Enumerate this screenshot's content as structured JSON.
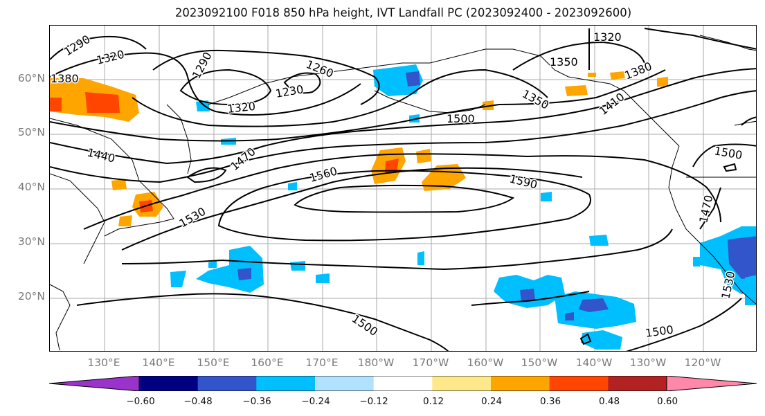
{
  "title": "2023092100 F018 850 hPa height, IVT Landfall PC (2023092400 - 2023092600)",
  "map": {
    "lat_labels": [
      "60°N",
      "50°N",
      "40°N",
      "30°N",
      "20°N"
    ],
    "lon_labels": [
      "130°E",
      "140°E",
      "150°E",
      "160°E",
      "170°E",
      "180°W",
      "170°W",
      "160°W",
      "150°W",
      "140°W",
      "130°W",
      "120°W"
    ],
    "contour_labels": [
      "1290",
      "1320",
      "1380",
      "1290",
      "1260",
      "1230",
      "1320",
      "1350",
      "1320",
      "1350",
      "1380",
      "1410",
      "1500",
      "1440",
      "1470",
      "1560",
      "1590",
      "1500",
      "1470",
      "1530",
      "1530",
      "1500",
      "1500"
    ]
  },
  "colorbar": {
    "colors": [
      "#9933cc",
      "#000080",
      "#3355cc",
      "#00bfff",
      "#b0e2ff",
      "#ffffff",
      "#ffe88a",
      "#ffa500",
      "#ff4500",
      "#b22222",
      "#ff88aa"
    ],
    "tick_labels": [
      "−0.60",
      "−0.48",
      "−0.36",
      "−0.24",
      "−0.12",
      "0.12",
      "0.24",
      "0.36",
      "0.48",
      "0.60"
    ]
  }
}
